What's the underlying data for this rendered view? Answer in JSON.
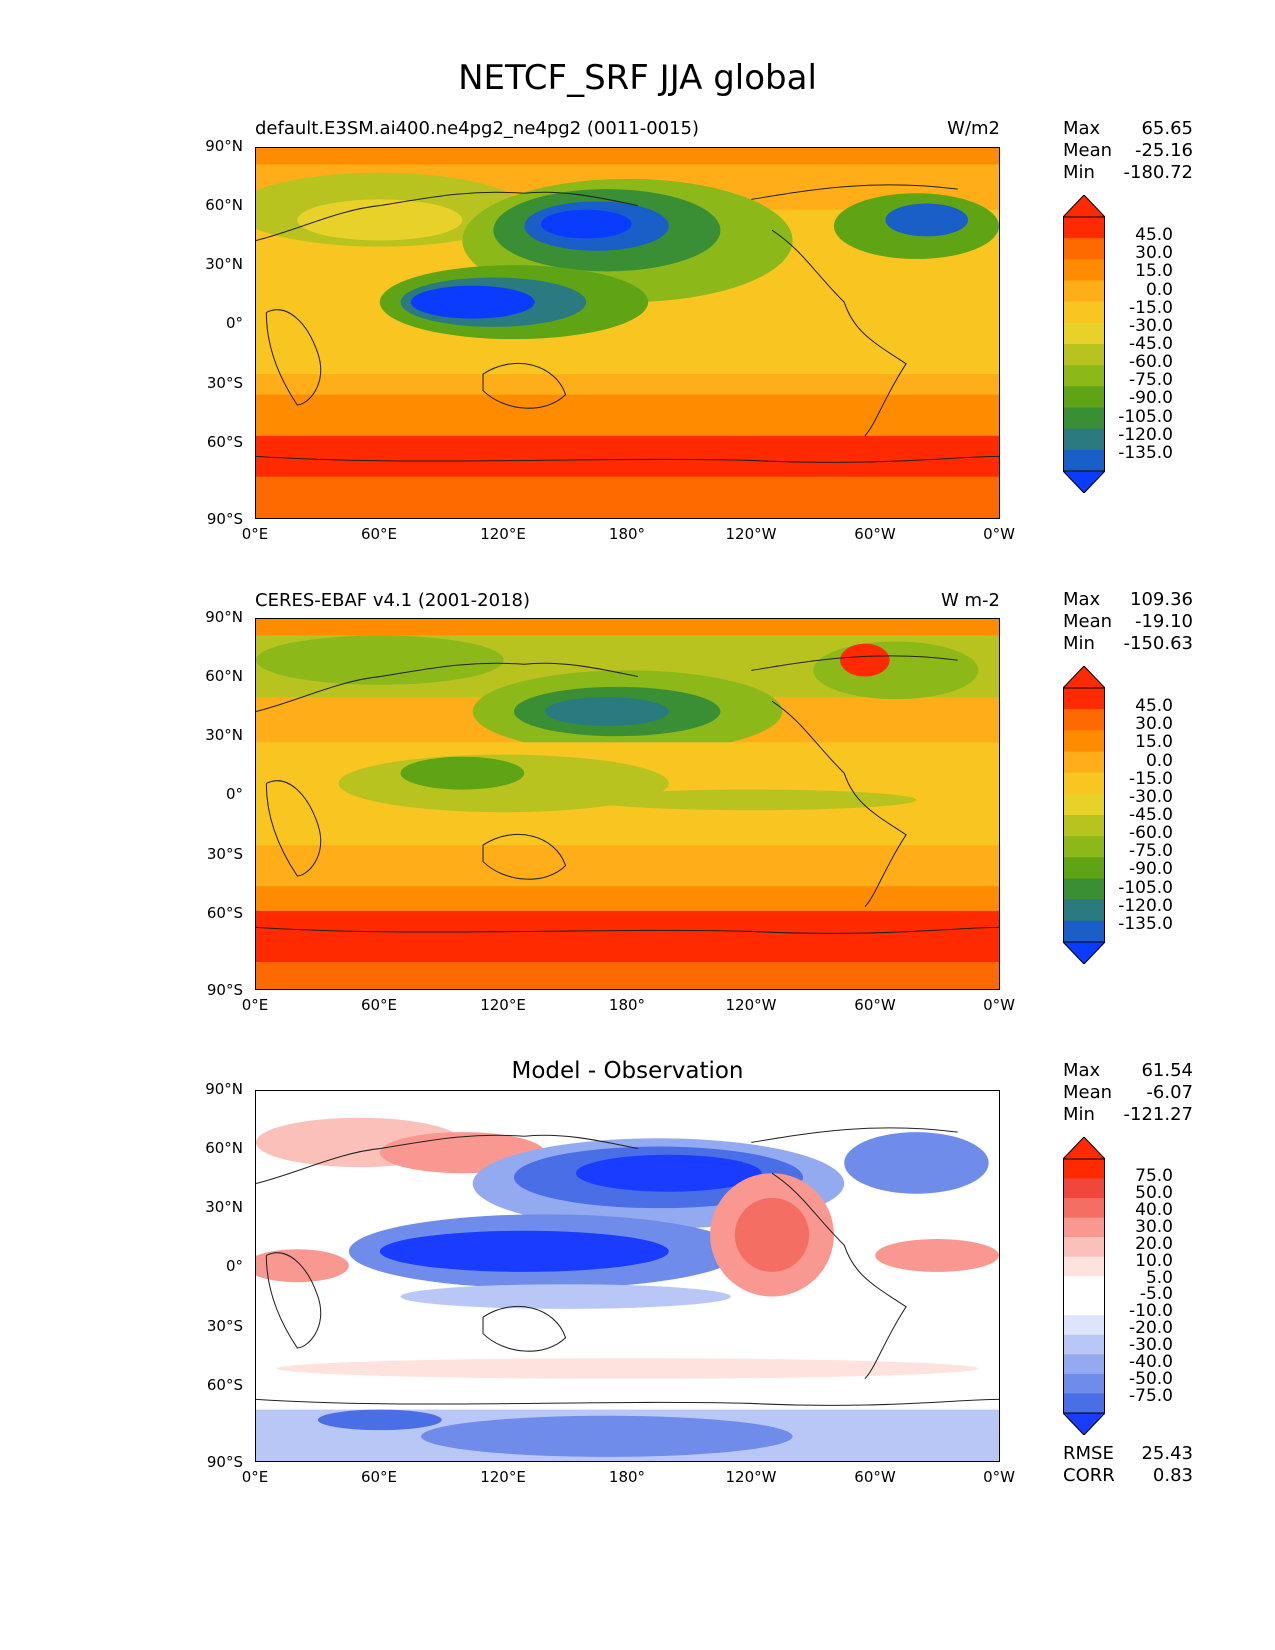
{
  "figure_title": "NETCF_SRF JJA global",
  "panels": [
    {
      "left_title": "default.E3SM.ai400.ne4pg2_ne4pg2 (0011-0015)",
      "right_title": "W/m2",
      "center_title": "",
      "stats": {
        "max_label": "Max",
        "max": "65.65",
        "mean_label": "Mean",
        "mean": "-25.16",
        "min_label": "Min",
        "min": "-180.72"
      },
      "colorbar_levels": [
        "45.0",
        "30.0",
        "15.0",
        "0.0",
        "-15.0",
        "-30.0",
        "-45.0",
        "-60.0",
        "-75.0",
        "-90.0",
        "-105.0",
        "-120.0",
        "-135.0"
      ]
    },
    {
      "left_title": "CERES-EBAF v4.1 (2001-2018)",
      "right_title": "W m-2",
      "center_title": "",
      "stats": {
        "max_label": "Max",
        "max": "109.36",
        "mean_label": "Mean",
        "mean": "-19.10",
        "min_label": "Min",
        "min": "-150.63"
      },
      "colorbar_levels": [
        "45.0",
        "30.0",
        "15.0",
        "0.0",
        "-15.0",
        "-30.0",
        "-45.0",
        "-60.0",
        "-75.0",
        "-90.0",
        "-105.0",
        "-120.0",
        "-135.0"
      ]
    },
    {
      "left_title": "",
      "right_title": "",
      "center_title": "Model - Observation",
      "stats": {
        "max_label": "Max",
        "max": "61.54",
        "mean_label": "Mean",
        "mean": "-6.07",
        "min_label": "Min",
        "min": "-121.27"
      },
      "colorbar_levels": [
        "75.0",
        "50.0",
        "40.0",
        "30.0",
        "20.0",
        "10.0",
        "5.0",
        "-5.0",
        "-10.0",
        "-20.0",
        "-30.0",
        "-40.0",
        "-50.0",
        "-75.0"
      ],
      "footer": {
        "rmse_label": "RMSE",
        "rmse": "25.43",
        "corr_label": "CORR",
        "corr": "0.83"
      }
    }
  ],
  "lat_ticks": [
    "90°N",
    "60°N",
    "30°N",
    "0°",
    "30°S",
    "60°S",
    "90°S"
  ],
  "lon_ticks": [
    "0°E",
    "60°E",
    "120°E",
    "180°",
    "120°W",
    "60°W",
    "0°W"
  ],
  "colors": {
    "abs_scale": [
      "#ff2a00",
      "#ff6a00",
      "#ff8c00",
      "#ffae1a",
      "#f9c520",
      "#e8d22a",
      "#b8c31f",
      "#8cb81a",
      "#5ea414",
      "#3a8e33",
      "#2a7a80",
      "#1a5fc8",
      "#0a3cff"
    ],
    "diff_scale": [
      "#ff2a00",
      "#f0473d",
      "#f56e63",
      "#f89890",
      "#fbc0ba",
      "#fde2de",
      "#ffffff",
      "#ffffff",
      "#dde4fb",
      "#b9c7f6",
      "#94aaf0",
      "#6f8cea",
      "#4a6ee5",
      "#1a3cff"
    ]
  }
}
